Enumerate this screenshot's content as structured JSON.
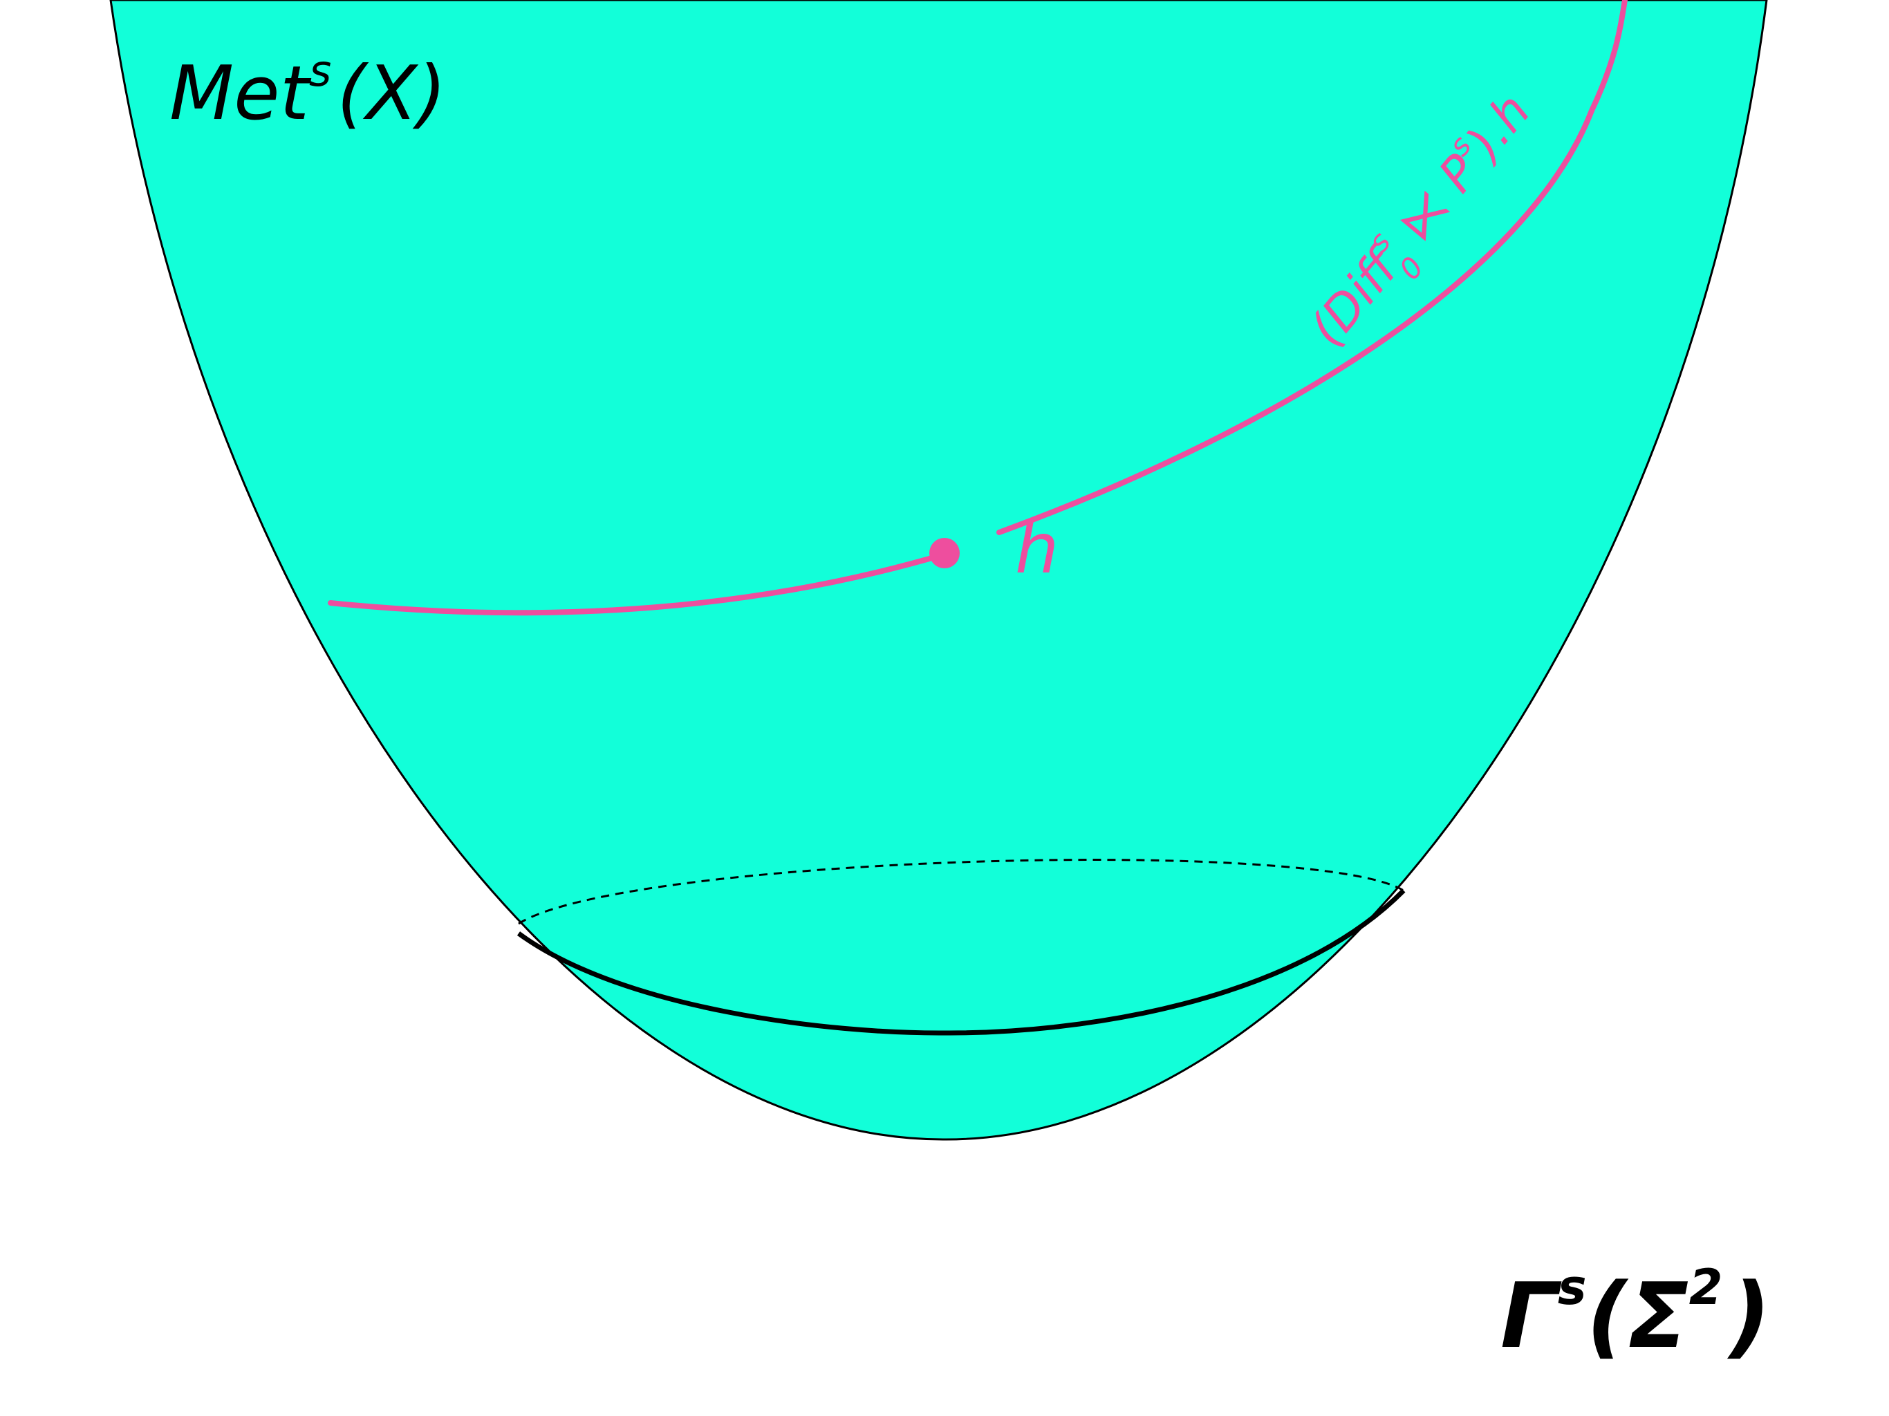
{
  "labels": {
    "space": {
      "base": "Met",
      "sup": "s",
      "arg": "(X)"
    },
    "point": "h",
    "orbit": {
      "open": "(Diff",
      "sup": "s",
      "sub": "0",
      "rest": " ⋉ P",
      "sup2": "s",
      "close": ").h"
    },
    "slice": {
      "base": "Γ",
      "sup": "s",
      "open": "(Σ",
      "sup2": "2",
      "close": ")"
    }
  },
  "colors": {
    "surface_fill": "#12FFD9",
    "outline": "#000000",
    "orbit": "#EE4E9E",
    "text": "#000000",
    "background": "#FFFFFF"
  }
}
